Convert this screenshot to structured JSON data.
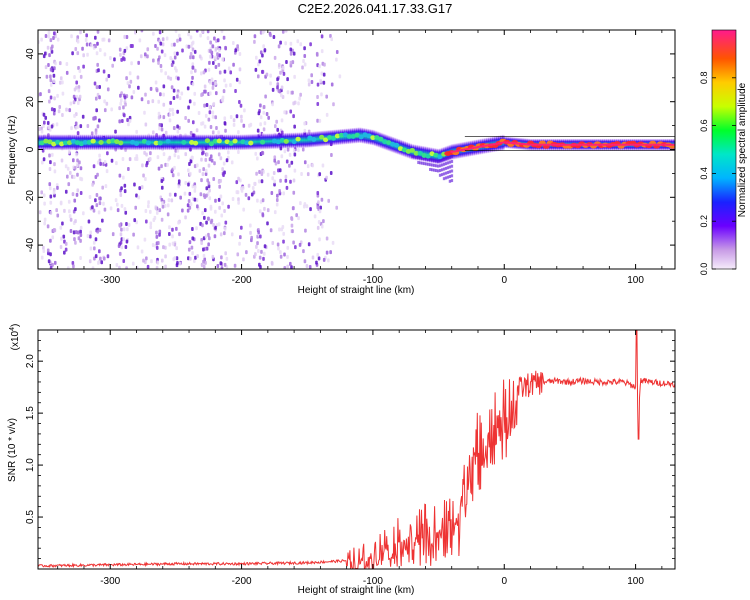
{
  "figure": {
    "title": "C2E2.2026.041.17.33.G17"
  },
  "chart_data": [
    {
      "type": "heatmap",
      "title": "C2E2.2026.041.17.33.G17",
      "xlabel": "Height of straight line (km)",
      "ylabel": "Frequency (Hz)",
      "xlim": [
        -355,
        130
      ],
      "ylim": [
        -50,
        50
      ],
      "xticks": [
        -300,
        -200,
        -100,
        0,
        100
      ],
      "xtick_labels": [
        "-300",
        "-200",
        "-100",
        "0",
        "100"
      ],
      "yticks": [
        -40,
        -20,
        0,
        20,
        40
      ],
      "ytick_labels": [
        "-40",
        "-20",
        "0",
        "20",
        "40"
      ],
      "colorbar": {
        "label": "Normalized spectral amplitude",
        "range": [
          0,
          1
        ],
        "ticks": [
          0.0,
          0.2,
          0.4,
          0.6,
          0.8
        ],
        "tick_labels": [
          "0.0",
          "0.2",
          "0.4",
          "0.6",
          "0.8"
        ]
      },
      "ridge": {
        "x": [
          -355,
          -300,
          -250,
          -200,
          -150,
          -130,
          -110,
          -100,
          -90,
          -80,
          -70,
          -60,
          -50,
          -40,
          -30,
          -20,
          -10,
          0,
          20,
          50,
          80,
          100,
          130
        ],
        "frequency": [
          3,
          3,
          3,
          3,
          4,
          5,
          6,
          5,
          3,
          1,
          -1,
          -2,
          -3,
          -1,
          0,
          1,
          2,
          3,
          2,
          2,
          2,
          2,
          2
        ]
      },
      "noise_region_km": [
        -355,
        -125
      ]
    },
    {
      "type": "line",
      "title": "",
      "xlabel": "Height of straight line (km)",
      "ylabel": "SNR (10 * v/v)",
      "scale_label": "(x10",
      "scale_exponent": "4",
      "xlim": [
        -355,
        130
      ],
      "ylim": [
        0,
        2.3
      ],
      "xticks": [
        -300,
        -200,
        -100,
        0,
        100
      ],
      "xtick_labels": [
        "-300",
        "-200",
        "-100",
        "0",
        "100"
      ],
      "yticks": [
        0.5,
        1.0,
        1.5,
        2.0
      ],
      "ytick_labels": [
        "0.5",
        "1.0",
        "1.5",
        "2.0"
      ],
      "series": [
        {
          "name": "SNR",
          "color": "#ee3333",
          "x": [
            -355,
            -300,
            -250,
            -200,
            -150,
            -120,
            -100,
            -90,
            -80,
            -70,
            -60,
            -50,
            -40,
            -35,
            -30,
            -25,
            -20,
            -15,
            -10,
            -5,
            0,
            5,
            10,
            20,
            30,
            40,
            50,
            60,
            70,
            80,
            90,
            95,
            100,
            102,
            104,
            110,
            120,
            130
          ],
          "values": [
            0.03,
            0.04,
            0.05,
            0.05,
            0.06,
            0.08,
            0.15,
            0.25,
            0.3,
            0.35,
            0.38,
            0.4,
            0.45,
            0.55,
            0.9,
            1.1,
            1.2,
            1.3,
            1.35,
            1.45,
            1.5,
            1.62,
            1.72,
            1.78,
            1.8,
            1.81,
            1.8,
            1.81,
            1.8,
            1.8,
            1.8,
            1.78,
            1.75,
            1.5,
            1.82,
            1.8,
            1.79,
            1.78
          ]
        }
      ]
    }
  ]
}
